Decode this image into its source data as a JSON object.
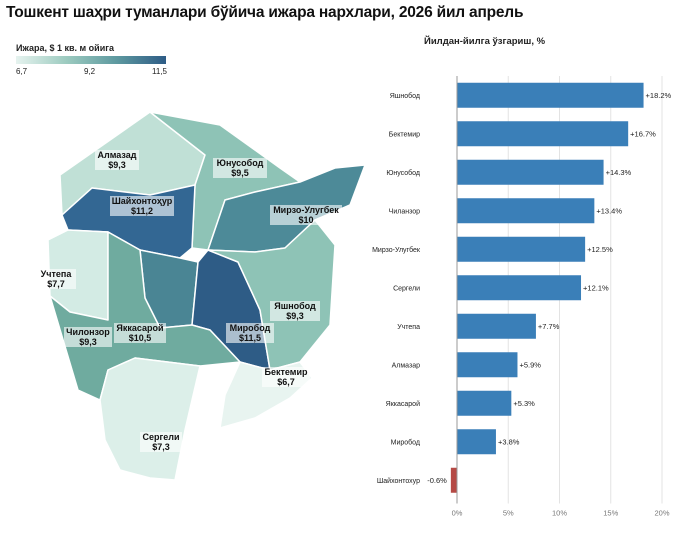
{
  "title": "Тошкент шаҳри туманлари бўйича ижара нархлари, 2026 йил апрель",
  "map": {
    "legend": {
      "title": "Ижара, $ 1 кв. м ойига",
      "min": "6,7",
      "mid": "9,2",
      "max": "11,5",
      "colors": [
        "#e6f3ef",
        "#9dcbc0",
        "#5e9aa0",
        "#2e5c86"
      ]
    },
    "districts": [
      {
        "name": "Алмазад",
        "value": "$9,3"
      },
      {
        "name": "Юнусобод",
        "value": "$9,5"
      },
      {
        "name": "Шайхонтоҳур",
        "value": "$11,2"
      },
      {
        "name": "Мирзо-Улугбек",
        "value": "$10"
      },
      {
        "name": "Учтепа",
        "value": "$7,7"
      },
      {
        "name": "Яшнобод",
        "value": "$9,3"
      },
      {
        "name": "Чилонзор",
        "value": "$9,3"
      },
      {
        "name": "Яккасарой",
        "value": "$10,5"
      },
      {
        "name": "Миробод",
        "value": "$11,5"
      },
      {
        "name": "Бектемир",
        "value": "$6,7"
      },
      {
        "name": "Сергели",
        "value": "$7,3"
      }
    ]
  },
  "chart_title": "Йилдан-йилга ўзгариш, %",
  "chart_data": {
    "type": "bar",
    "orientation": "horizontal",
    "title": "Йилдан-йилга ўзгариш, %",
    "categories": [
      "Яшнобод",
      "Бектемир",
      "Юнусобод",
      "Чиланзор",
      "Мирзо-Улугбек",
      "Сергели",
      "Учтепа",
      "Алмазар",
      "Яккасарой",
      "Миробод",
      "Шайхонтохур"
    ],
    "values": [
      18.2,
      16.7,
      14.3,
      13.4,
      12.5,
      12.1,
      7.7,
      5.9,
      5.3,
      3.8,
      -0.6
    ],
    "value_labels": [
      "+18.2%",
      "+16.7%",
      "+14.3%",
      "+13.4%",
      "+12.5%",
      "+12.1%",
      "+7.7%",
      "+5.9%",
      "+5.3%",
      "+3.8%",
      "-0.6%"
    ],
    "xlim": [
      0,
      20
    ],
    "xticks": [
      "0%",
      "5%",
      "10%",
      "15%",
      "20%"
    ],
    "grid": "vertical",
    "colors": {
      "positive": "#3a7fb8",
      "negative": "#b54a45"
    }
  }
}
